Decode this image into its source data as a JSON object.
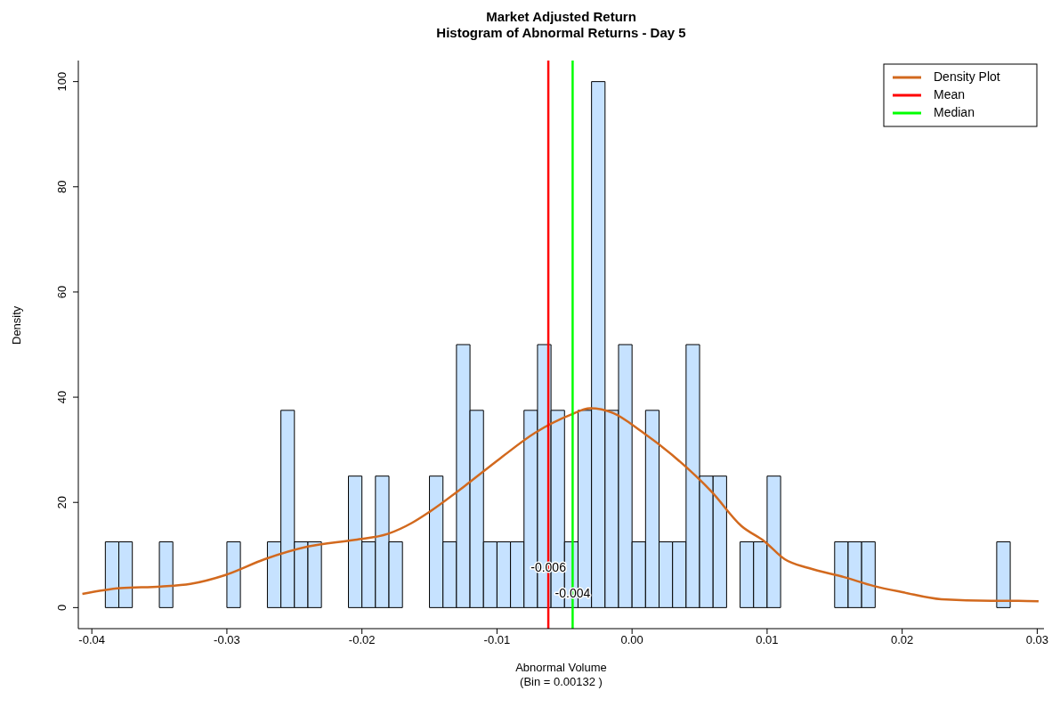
{
  "chart_data": {
    "type": "histogram",
    "title": "Market Adjusted Return",
    "subtitle": "Histogram of Abnormal Returns - Day 5",
    "xlabel": "Abnormal Volume\n(Bin = 0.00132 )",
    "ylabel": "Density",
    "bins": [
      -0.039,
      -0.038,
      -0.037,
      -0.036,
      -0.035,
      -0.034,
      -0.033,
      -0.032,
      -0.031,
      -0.03,
      -0.029,
      -0.028,
      -0.027,
      -0.026,
      -0.025,
      -0.024,
      -0.023,
      -0.022,
      -0.021,
      -0.02,
      -0.019,
      -0.018,
      -0.017,
      -0.016,
      -0.015,
      -0.014,
      -0.013,
      -0.012,
      -0.011,
      -0.01,
      -0.009,
      -0.008,
      -0.007,
      -0.006,
      -0.005,
      -0.004,
      -0.003,
      -0.002,
      -0.001,
      0.0,
      0.001,
      0.002,
      0.003,
      0.004,
      0.005,
      0.006,
      0.007,
      0.008,
      0.009,
      0.01,
      0.011,
      0.012,
      0.013,
      0.014,
      0.015,
      0.016,
      0.017,
      0.018,
      0.019,
      0.02,
      0.021,
      0.022,
      0.023,
      0.024,
      0.025,
      0.026,
      0.027,
      0.028
    ],
    "values": [
      12.5,
      12.5,
      0,
      0,
      12.5,
      0,
      0,
      0,
      0,
      12.5,
      0,
      0,
      12.5,
      37.5,
      12.5,
      12.5,
      0,
      0,
      25,
      12.5,
      25,
      12.5,
      0,
      0,
      25,
      12.5,
      50,
      37.5,
      12.5,
      12.5,
      12.5,
      37.5,
      50,
      37.5,
      12.5,
      37.5,
      100,
      37.5,
      50,
      12.5,
      37.5,
      12.5,
      12.5,
      50,
      25,
      25,
      0,
      12.5,
      12.5,
      25,
      0,
      0,
      0,
      0,
      12.5,
      12.5,
      12.5,
      0,
      0,
      0,
      0,
      0,
      0,
      0,
      0,
      0,
      12.5
    ],
    "color": "#c6e2ff",
    "series": [
      {
        "name": "Density Plot",
        "type": "line",
        "color": "#d2691e",
        "x": [
          -0.0407,
          -0.0379,
          -0.0349,
          -0.0327,
          -0.0301,
          -0.0272,
          -0.024,
          -0.0205,
          -0.0181,
          -0.0163,
          -0.015,
          -0.0124,
          -0.0098,
          -0.0072,
          -0.0046,
          -0.0031,
          -0.0014,
          0.0007,
          0.0033,
          0.0059,
          0.0081,
          0.0098,
          0.0113,
          0.0131,
          0.0157,
          0.0179,
          0.0201,
          0.0229,
          0.0266,
          0.0286,
          0.0301
        ],
        "values": [
          2.6,
          3.7,
          4.0,
          4.5,
          6.2,
          9.2,
          11.6,
          12.9,
          14.0,
          16.1,
          18.2,
          23.1,
          28.3,
          33.2,
          36.6,
          37.9,
          37.0,
          33.5,
          28.3,
          22,
          15.5,
          12.6,
          9.2,
          7.5,
          5.8,
          4.1,
          2.9,
          1.6,
          1.3,
          1.3,
          1.2
        ]
      },
      {
        "name": "Mean",
        "type": "line",
        "color": "#ff0000",
        "x": [
          -0.0062,
          -0.0062
        ],
        "values": [
          -4,
          104
        ]
      },
      {
        "name": "Median",
        "type": "line",
        "color": "#00ff00",
        "x": [
          -0.0044,
          -0.0044
        ],
        "values": [
          -4,
          104
        ]
      }
    ],
    "annotations": [
      {
        "text": "-0.006",
        "x": -0.0062,
        "y": 7.5
      },
      {
        "text": "-0.004",
        "x": -0.0044,
        "y": 2.5
      }
    ],
    "xlim": [
      -0.041,
      0.0305
    ],
    "xticks": [
      -0.04,
      -0.03,
      -0.02,
      -0.01,
      {
        "value": 0,
        "label": "0.00"
      },
      0.01,
      0.02,
      0.03
    ],
    "ylim": [
      -4,
      104
    ],
    "yticks": [
      0,
      20,
      40,
      60,
      80,
      100
    ],
    "grid": false,
    "legend": "top right"
  }
}
